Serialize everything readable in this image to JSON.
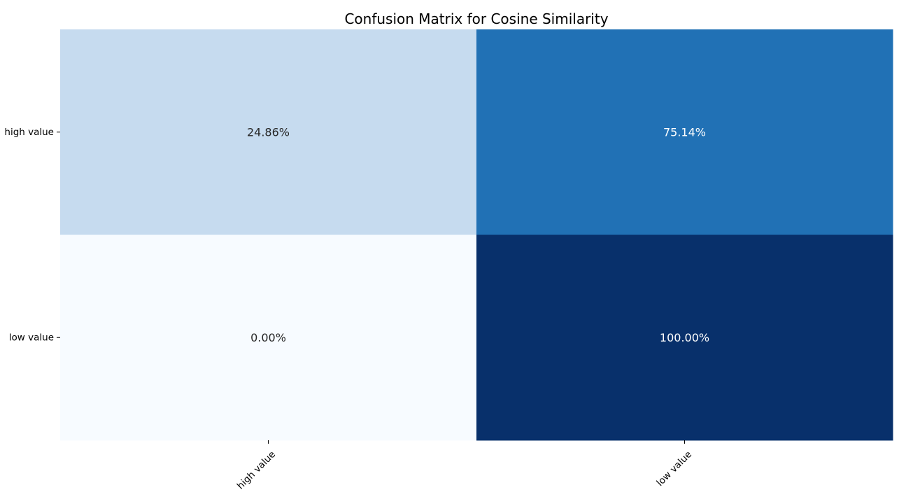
{
  "chart_data": {
    "type": "heatmap",
    "title": "Confusion Matrix for Cosine Similarity",
    "xlabel": "",
    "ylabel": "",
    "row_labels": [
      "high value",
      "low value"
    ],
    "col_labels": [
      "high value",
      "low value"
    ],
    "values": [
      [
        24.86,
        75.14
      ],
      [
        0.0,
        100.0
      ]
    ],
    "cell_labels": [
      [
        "24.86%",
        "75.14%"
      ],
      [
        "0.00%",
        "100.00%"
      ]
    ],
    "value_range": [
      0,
      100
    ],
    "colormap": "Blues",
    "colorbar": false,
    "cell_colors": [
      [
        "#c6dbef",
        "#2171b5"
      ],
      [
        "#f7fbff",
        "#08306b"
      ]
    ],
    "cell_text_colors": [
      [
        "#262626",
        "#ffffff"
      ],
      [
        "#262626",
        "#ffffff"
      ]
    ]
  }
}
